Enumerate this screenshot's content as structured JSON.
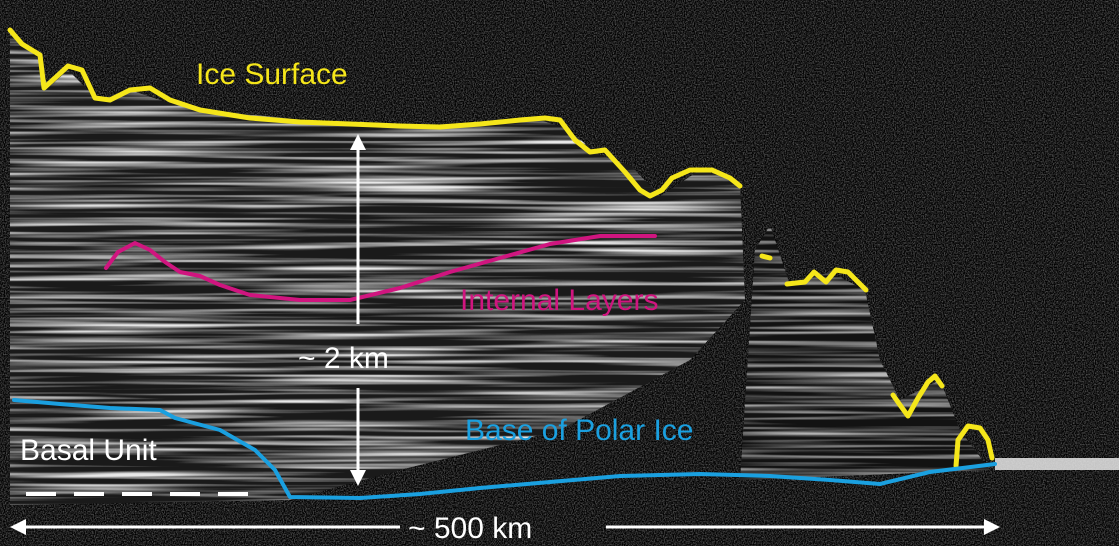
{
  "labels": {
    "ice_surface": "Ice Surface",
    "internal_layers": "Internal Layers",
    "thickness": "~ 2 km",
    "base_of_polar_ice": "Base of Polar Ice",
    "basal_unit": "Basal Unit",
    "horizontal_scale": "~ 500 km"
  },
  "colors": {
    "ice_surface": "#f5e61a",
    "internal_layers": "#d0157f",
    "base_of_polar_ice": "#1aa0e0",
    "annotation": "#ffffff",
    "background": "#000000"
  }
}
